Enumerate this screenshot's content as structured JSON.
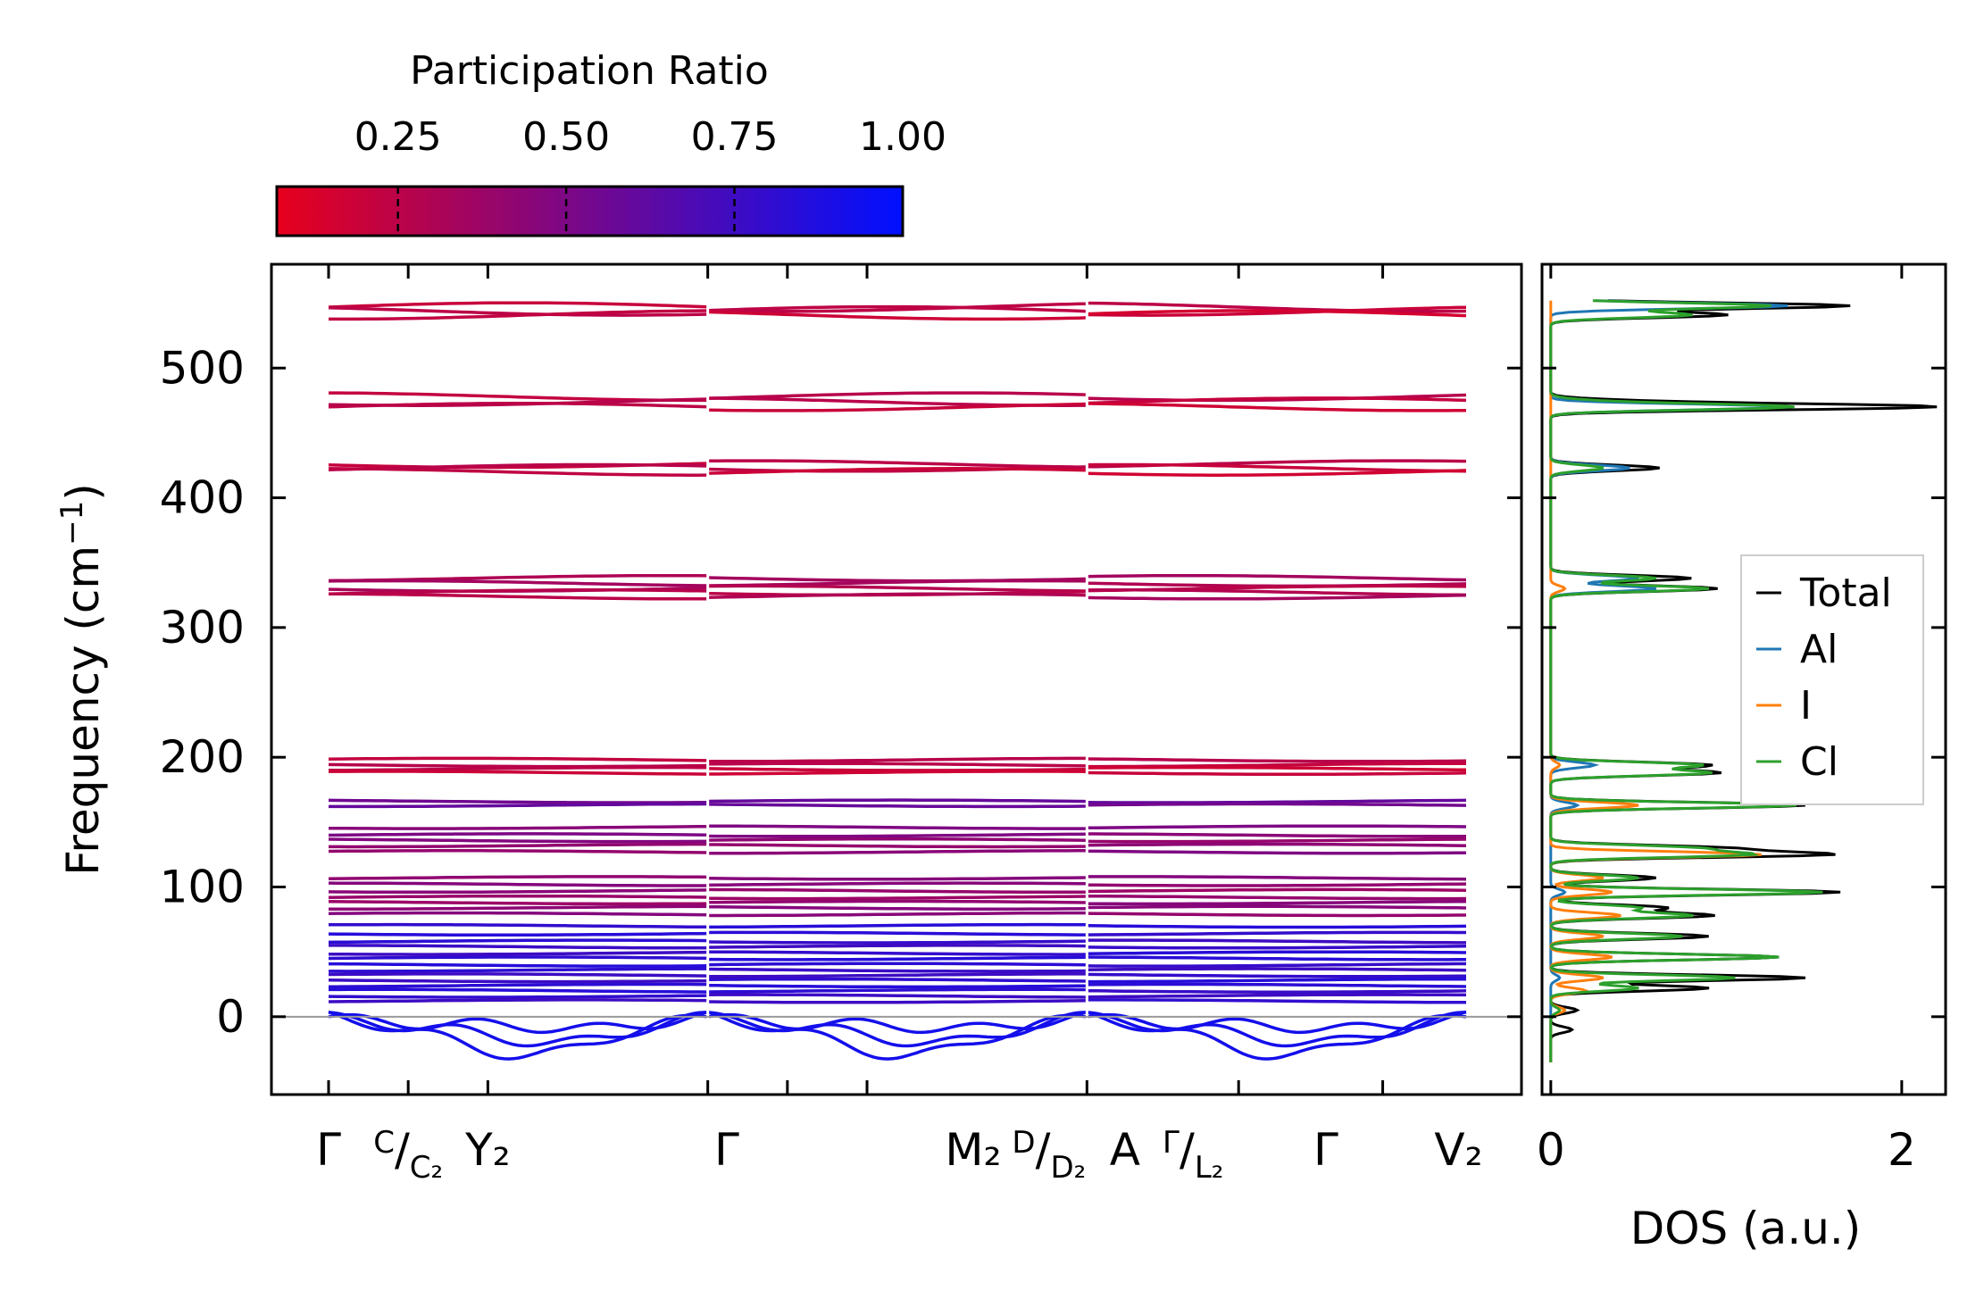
{
  "colors": {
    "cmap_low": "#e8001c",
    "cmap_high": "#0010ff",
    "dos_total": "#000000",
    "dos_Al": "#1f77b4",
    "dos_I": "#ff7f0e",
    "dos_Cl": "#2ca02c",
    "zero_line": "#999999"
  },
  "chart_data": [
    {
      "type": "heatmap",
      "role": "colorbar",
      "title": "Participation Ratio",
      "range": [
        0.07,
        1.0
      ],
      "tick_values": [
        0.25,
        0.5,
        0.75,
        1.0
      ],
      "tick_labels": [
        "0.25",
        "0.50",
        "0.75",
        "1.00"
      ]
    },
    {
      "type": "line",
      "role": "phonon-band-structure",
      "ylabel": "Frequency (cm⁻¹)",
      "ylabel_superscript": "−1",
      "ylabel_prefix": "Frequency (cm",
      "ylabel_suffix": ")",
      "ylim": [
        -60,
        580
      ],
      "yticks": [
        0,
        100,
        200,
        300,
        400,
        500
      ],
      "ytick_labels": [
        "0",
        "100",
        "200",
        "300",
        "400",
        "500"
      ],
      "x_segments": [
        {
          "start": 0.0,
          "end": 1.0
        },
        {
          "start": 1.0,
          "end": 2.0
        },
        {
          "start": 2.0,
          "end": 3.0
        }
      ],
      "x_ticks": [
        0,
        0.21,
        0.42,
        1.0,
        1.21,
        1.42,
        2.0,
        2.4,
        2.78
      ],
      "x_labels": [
        {
          "pos": 0.0,
          "text": "Γ"
        },
        {
          "pos": 0.21,
          "text": "C/C₂",
          "main": "C",
          "sub_slash": "/",
          "sub": "C₂"
        },
        {
          "pos": 0.42,
          "text": "Y₂"
        },
        {
          "pos": 1.05,
          "text": "Γ"
        },
        {
          "pos": 1.7,
          "text": "M₂"
        },
        {
          "pos": 1.9,
          "text": "D/D₂",
          "main": "D",
          "sub_slash": "/",
          "sub": "D₂"
        },
        {
          "pos": 2.1,
          "text": "A"
        },
        {
          "pos": 2.28,
          "text": "Γ/L₂",
          "main": "Γ",
          "sub_slash": "/",
          "sub": "L₂"
        },
        {
          "pos": 2.63,
          "text": "Γ"
        },
        {
          "pos": 2.98,
          "text": "V₂"
        }
      ],
      "band_groups": [
        {
          "freqs": [
            547,
            544,
            541
          ],
          "pr": 0.2
        },
        {
          "freqs": [
            478,
            474,
            470
          ],
          "pr": 0.22
        },
        {
          "freqs": [
            426,
            423,
            420
          ],
          "pr": 0.21
        },
        {
          "freqs": [
            338,
            334,
            330,
            327,
            324
          ],
          "pr": 0.3
        },
        {
          "freqs": [
            198,
            194,
            191,
            188
          ],
          "pr": 0.22
        },
        {
          "freqs": [
            166,
            163
          ],
          "pr": 0.55
        },
        {
          "freqs": [
            146,
            140,
            136,
            132,
            127
          ],
          "pr": 0.45
        },
        {
          "freqs": [
            107,
            102,
            97,
            92,
            88,
            84,
            79
          ],
          "pr": 0.42
        },
        {
          "freqs": [
            70,
            64,
            58,
            54,
            49,
            45,
            40,
            36,
            32,
            28,
            24,
            20,
            16,
            12
          ],
          "pr": 0.8
        }
      ],
      "acoustic_modes_min": [
        -12,
        -22,
        -30
      ]
    },
    {
      "type": "line",
      "role": "density-of-states",
      "xlabel": "DOS (a.u.)",
      "xlim": [
        -0.05,
        2.25
      ],
      "xticks": [
        0,
        2
      ],
      "xtick_labels": [
        "0",
        "2"
      ],
      "ylim": [
        -60,
        580
      ],
      "series": [
        {
          "name": "Total",
          "peaks": [
            [
              548,
              1.7
            ],
            [
              541,
              1.0
            ],
            [
              474,
              0.4
            ],
            [
              470,
              2.15
            ],
            [
              423,
              0.62
            ],
            [
              338,
              0.8
            ],
            [
              330,
              0.95
            ],
            [
              194,
              0.9
            ],
            [
              188,
              0.95
            ],
            [
              163,
              1.45
            ],
            [
              130,
              0.95
            ],
            [
              125,
              1.55
            ],
            [
              107,
              0.6
            ],
            [
              96,
              1.65
            ],
            [
              84,
              0.65
            ],
            [
              78,
              0.92
            ],
            [
              62,
              0.9
            ],
            [
              46,
              1.3
            ],
            [
              30,
              1.45
            ],
            [
              22,
              0.9
            ],
            [
              5,
              0.15
            ],
            [
              -10,
              0.12
            ]
          ]
        },
        {
          "name": "Al",
          "peaks": [
            [
              548,
              1.35
            ],
            [
              470,
              1.35
            ],
            [
              423,
              0.45
            ],
            [
              338,
              0.5
            ],
            [
              330,
              0.6
            ],
            [
              194,
              0.25
            ],
            [
              163,
              0.15
            ],
            [
              96,
              0.08
            ],
            [
              30,
              0.05
            ]
          ]
        },
        {
          "name": "I",
          "peaks": [
            [
              330,
              0.08
            ],
            [
              194,
              0.05
            ],
            [
              163,
              0.5
            ],
            [
              125,
              1.2
            ],
            [
              107,
              0.3
            ],
            [
              96,
              0.35
            ],
            [
              78,
              0.4
            ],
            [
              62,
              0.3
            ],
            [
              46,
              0.35
            ],
            [
              30,
              0.3
            ],
            [
              20,
              0.2
            ],
            [
              5,
              0.08
            ]
          ]
        },
        {
          "name": "Cl",
          "peaks": [
            [
              548,
              1.25
            ],
            [
              541,
              0.8
            ],
            [
              474,
              0.2
            ],
            [
              470,
              1.35
            ],
            [
              423,
              0.3
            ],
            [
              338,
              0.6
            ],
            [
              330,
              0.9
            ],
            [
              194,
              0.85
            ],
            [
              188,
              0.9
            ],
            [
              163,
              1.4
            ],
            [
              130,
              0.8
            ],
            [
              125,
              1.1
            ],
            [
              107,
              0.5
            ],
            [
              96,
              1.55
            ],
            [
              84,
              0.5
            ],
            [
              78,
              0.8
            ],
            [
              62,
              0.75
            ],
            [
              46,
              1.3
            ],
            [
              30,
              1.05
            ],
            [
              22,
              0.5
            ],
            [
              5,
              0.05
            ]
          ]
        }
      ],
      "legend": {
        "placement": "center-right",
        "entries": [
          "Total",
          "Al",
          "I",
          "Cl"
        ]
      }
    }
  ]
}
